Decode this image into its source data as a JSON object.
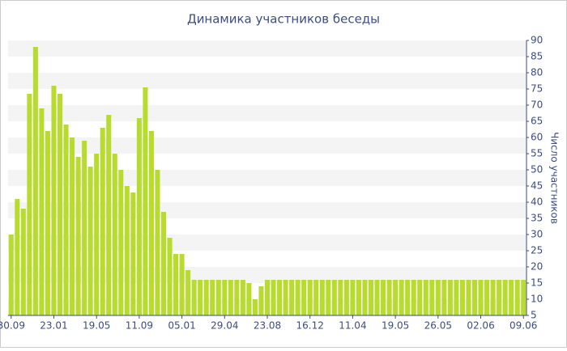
{
  "chart_data": {
    "type": "bar",
    "title": "Динамика участников беседы",
    "y_label": "Число участников",
    "categories": [
      "30.09",
      null,
      null,
      null,
      null,
      null,
      null,
      "23.01",
      null,
      null,
      null,
      null,
      null,
      null,
      "19.05",
      null,
      null,
      null,
      null,
      null,
      null,
      "11.09",
      null,
      null,
      null,
      null,
      null,
      null,
      "05.01",
      null,
      null,
      null,
      null,
      null,
      null,
      "29.04",
      null,
      null,
      null,
      null,
      null,
      null,
      "23.08",
      null,
      null,
      null,
      null,
      null,
      null,
      "16.12",
      null,
      null,
      null,
      null,
      null,
      null,
      "11.04",
      null,
      null,
      null,
      null,
      null,
      null,
      "19.05",
      null,
      null,
      null,
      null,
      null,
      null,
      "26.05",
      null,
      null,
      null,
      null,
      null,
      null,
      "02.06",
      null,
      null,
      null,
      null,
      null,
      null,
      "09.06"
    ],
    "values": [
      30,
      41,
      38,
      73.5,
      88,
      69,
      62,
      76,
      73.5,
      64,
      60,
      54,
      59,
      51,
      55,
      63,
      67,
      55,
      50,
      45,
      43,
      66,
      75.5,
      62,
      50,
      37,
      29,
      24,
      24,
      19,
      16,
      16,
      16,
      16,
      16,
      16,
      16,
      16,
      16,
      15,
      10,
      14,
      16,
      16,
      16,
      16,
      16,
      16,
      16,
      16,
      16,
      16,
      16,
      16,
      16,
      16,
      16,
      16,
      16,
      16,
      16,
      16,
      16,
      16,
      16,
      16,
      16,
      16,
      16,
      16,
      16,
      16,
      16,
      16,
      16,
      16,
      16,
      16,
      16,
      16,
      16,
      16,
      16,
      16,
      16
    ],
    "color": "#b8dc2e",
    "ylim": [
      5,
      90
    ],
    "yticks": [
      5,
      10,
      15,
      20,
      25,
      30,
      35,
      40,
      45,
      50,
      55,
      60,
      65,
      70,
      75,
      80,
      85,
      90
    ],
    "grid": true
  }
}
